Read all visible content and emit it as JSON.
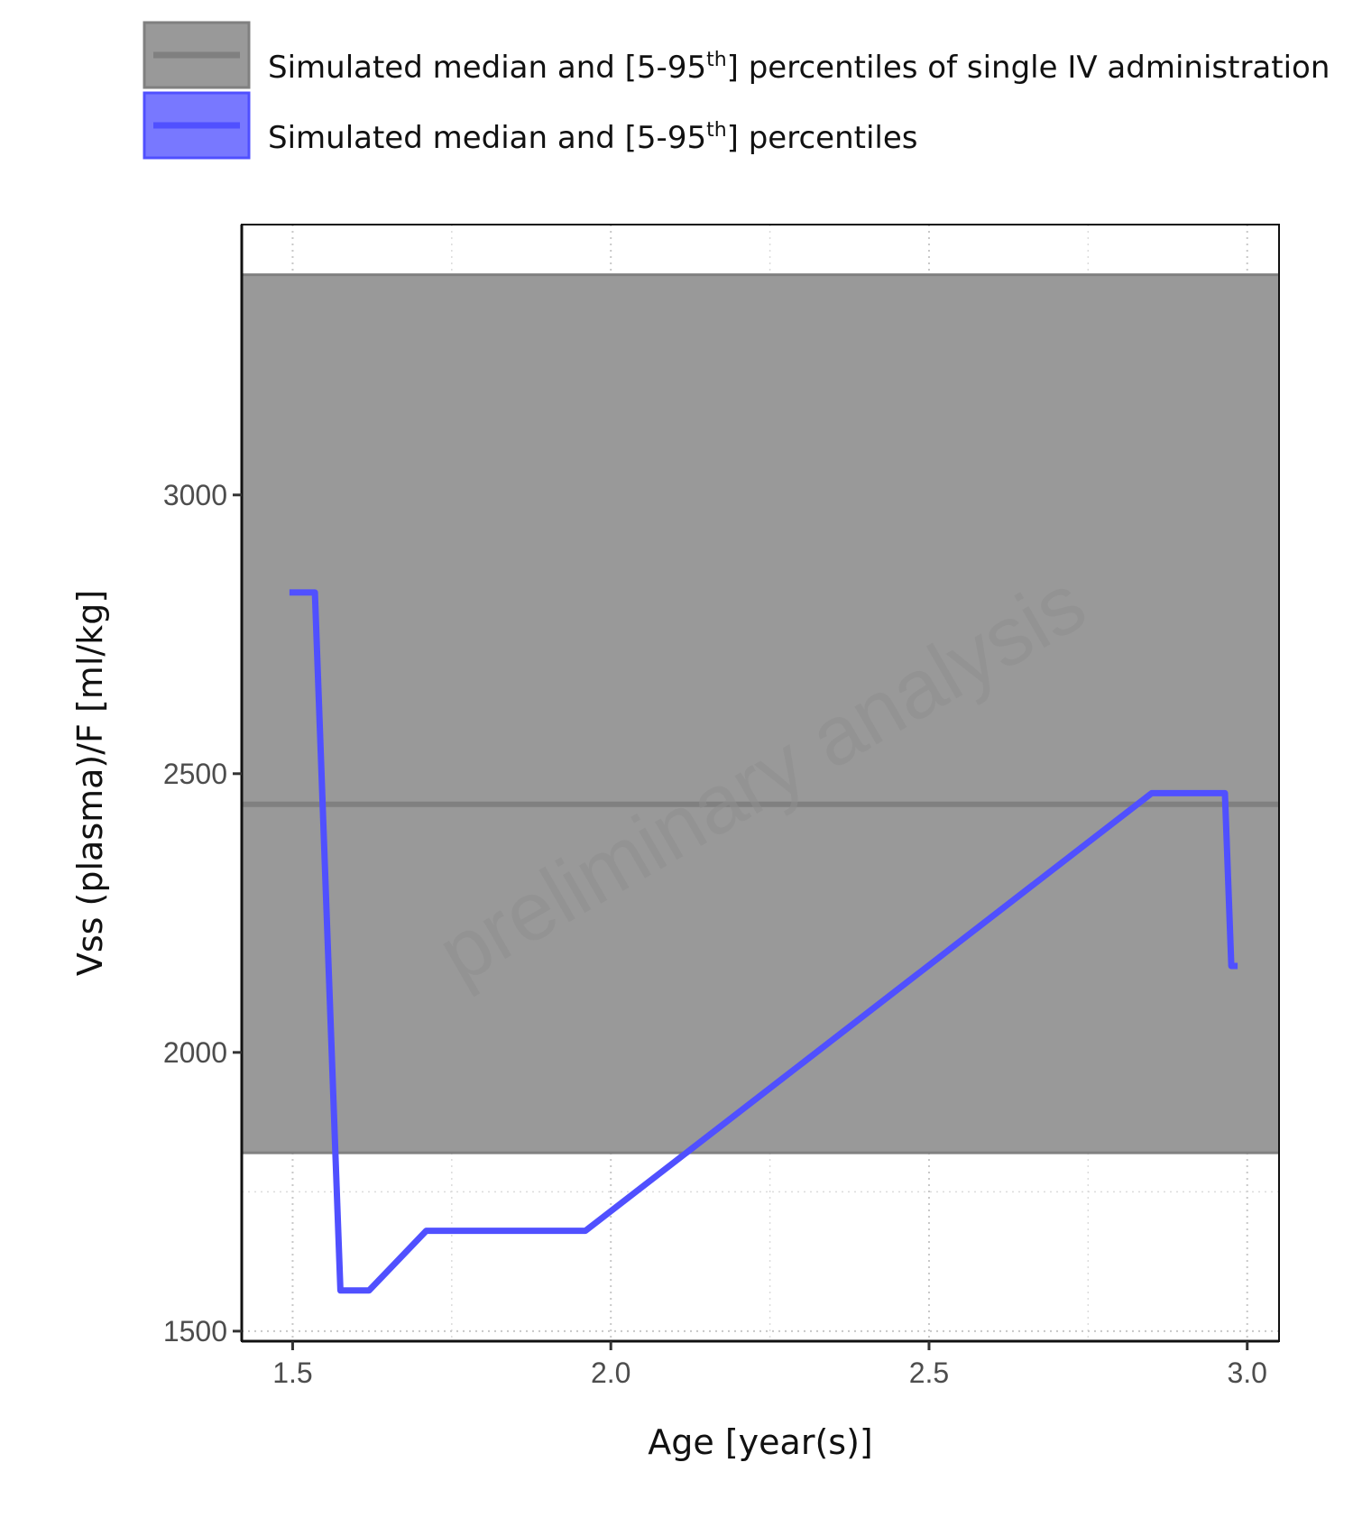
{
  "chart_data": {
    "type": "line",
    "xlabel": "Age [year(s)]",
    "ylabel": "Vss (plasma)/F [ml/kg]",
    "xlim": [
      1.42,
      3.05
    ],
    "ylim": [
      1482,
      3485
    ],
    "x_ticks": [
      1.5,
      2.0,
      2.5,
      3.0
    ],
    "x_tick_labels": [
      "1.5",
      "2.0",
      "2.5",
      "3.0"
    ],
    "y_ticks": [
      1500,
      2000,
      2500,
      3000
    ],
    "y_tick_labels": [
      "1500",
      "2000",
      "2500",
      "3000"
    ],
    "grid": "dotted",
    "legend_position": "top",
    "watermark": "preliminary analysis",
    "series": [
      {
        "name": "Simulated median and [5-95th] percentiles of single IV administration",
        "kind": "band",
        "color": "#808080",
        "band_color": "#999999",
        "median": 2445,
        "lower": 1820,
        "upper": 3395
      },
      {
        "name": "Simulated median and [5-95th] percentiles",
        "kind": "line",
        "color": "#5050ff",
        "x": [
          1.495,
          1.535,
          1.575,
          1.62,
          1.71,
          1.96,
          2.85,
          2.965,
          2.975,
          2.985
        ],
        "y": [
          2825,
          2825,
          1573,
          1573,
          1680,
          1680,
          2465,
          2465,
          2155,
          2155
        ]
      }
    ]
  },
  "legend": [
    {
      "label_prefix": "Simulated median and [5-95",
      "label_sup": "th",
      "label_suffix": "] percentiles of single IV administration",
      "swatch_fill": "#999999",
      "swatch_line": "#808080"
    },
    {
      "label_prefix": "Simulated median and [5-95",
      "label_sup": "th",
      "label_suffix": "] percentiles",
      "swatch_fill": "#7878ff",
      "swatch_line": "#5050ff"
    }
  ]
}
